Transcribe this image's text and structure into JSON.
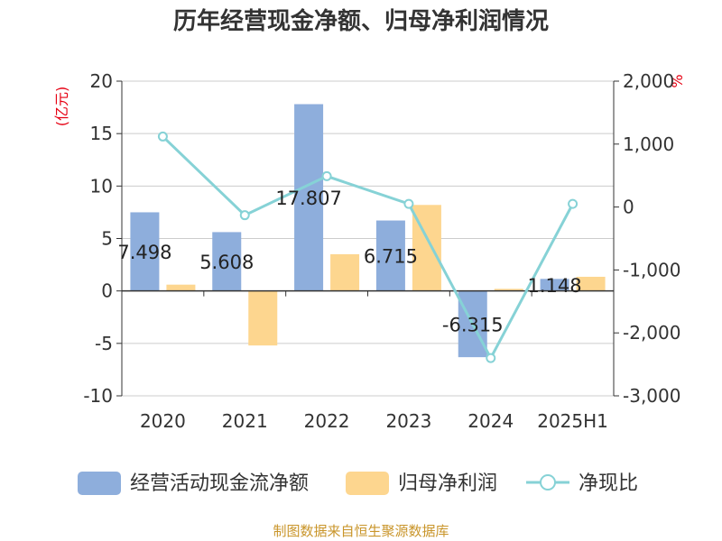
{
  "chart_data": {
    "type": "bar",
    "title": "历年经营现金净额、归母净利润情况",
    "left_axis_unit": "(亿元)",
    "right_axis_unit": "%",
    "categories": [
      "2020",
      "2021",
      "2022",
      "2023",
      "2024",
      "2025H1"
    ],
    "left_ylim": [
      -10,
      20
    ],
    "left_ticks": [
      20,
      15,
      10,
      5,
      0,
      -5,
      -10
    ],
    "right_ylim": [
      -3000,
      2000
    ],
    "right_ticks": [
      "2,000",
      "1,000",
      "0",
      "-1,000",
      "-2,000",
      "-3,000"
    ],
    "grid": true,
    "legend_position": "bottom",
    "series": [
      {
        "name": "经营活动现金流净额",
        "type": "bar",
        "axis": "left",
        "color": "#8eaedc",
        "values": [
          7.498,
          5.608,
          17.807,
          6.715,
          -6.315,
          1.148
        ],
        "labels": [
          "7.498",
          "5.608",
          "17.807",
          "6.715",
          "-6.315",
          "1.148"
        ]
      },
      {
        "name": "归母净利润",
        "type": "bar",
        "axis": "left",
        "color": "#fdd68f",
        "values": [
          0.6,
          -5.2,
          3.5,
          8.2,
          0.2,
          1.35
        ]
      },
      {
        "name": "净现比",
        "type": "line",
        "axis": "right",
        "color": "#86d2d6",
        "values": [
          1120,
          -130,
          490,
          50,
          -2400,
          50
        ]
      }
    ],
    "source": "制图数据来自恒生聚源数据库"
  }
}
